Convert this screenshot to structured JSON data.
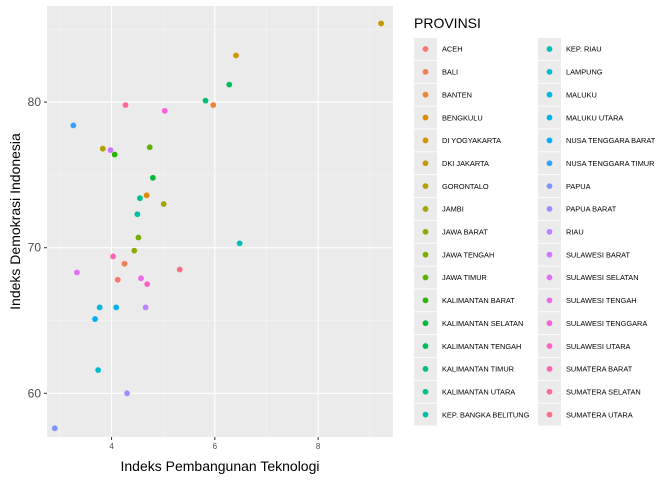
{
  "chart_data": {
    "type": "scatter",
    "xlabel": "Indeks Pembangunan Teknologi",
    "ylabel": "Indeks Demokrasi Indonesia",
    "xlim": [
      2.75,
      9.45
    ],
    "ylim": [
      57.0,
      86.6
    ],
    "x_ticks": [
      4,
      6,
      8
    ],
    "y_ticks": [
      60,
      70,
      80
    ],
    "grid": true,
    "legend": {
      "title": "PROVINSI",
      "placement": "right",
      "columns": 2
    },
    "series": [
      {
        "name": "ACEH",
        "color": "#F8766D",
        "x": 4.12,
        "y": 67.8
      },
      {
        "name": "BALI",
        "color": "#F27D52",
        "x": 4.25,
        "y": 68.9
      },
      {
        "name": "BANTEN",
        "color": "#E98535",
        "x": 5.97,
        "y": 79.8
      },
      {
        "name": "BENGKULU",
        "color": "#DE8C00",
        "x": 4.68,
        "y": 73.6
      },
      {
        "name": "DI YOGYAKARTA",
        "color": "#D49300",
        "x": 6.41,
        "y": 83.2
      },
      {
        "name": "DKI JAKARTA",
        "color": "#C49A00",
        "x": 9.22,
        "y": 85.4
      },
      {
        "name": "GORONTALO",
        "color": "#B49F00",
        "x": 3.83,
        "y": 76.8
      },
      {
        "name": "JAMBI",
        "color": "#A3A500",
        "x": 5.01,
        "y": 73.0
      },
      {
        "name": "JAWA BARAT",
        "color": "#8FAA00",
        "x": 4.44,
        "y": 69.8
      },
      {
        "name": "JAWA TENGAH",
        "color": "#7AAE00",
        "x": 4.52,
        "y": 70.7
      },
      {
        "name": "JAWA TIMUR",
        "color": "#5BB300",
        "x": 4.74,
        "y": 76.9
      },
      {
        "name": "KALIMANTAN BARAT",
        "color": "#2AB700",
        "x": 4.06,
        "y": 76.4
      },
      {
        "name": "KALIMANTAN SELATAN",
        "color": "#00BA38",
        "x": 4.8,
        "y": 74.8
      },
      {
        "name": "KALIMANTAN TENGAH",
        "color": "#00BC59",
        "x": 6.28,
        "y": 81.2
      },
      {
        "name": "KALIMANTAN TIMUR",
        "color": "#00BE74",
        "x": 5.82,
        "y": 80.1
      },
      {
        "name": "KALIMANTAN UTARA",
        "color": "#00BF8C",
        "x": 4.55,
        "y": 73.4
      },
      {
        "name": "KEP. BANGKA BELITUNG",
        "color": "#00C0A3",
        "x": 4.5,
        "y": 72.3
      },
      {
        "name": "KEP. RIAU",
        "color": "#00BFB9",
        "x": 6.48,
        "y": 70.3
      },
      {
        "name": "LAMPUNG",
        "color": "#00BDCD",
        "x": 3.74,
        "y": 61.6
      },
      {
        "name": "MALUKU",
        "color": "#00B9E0",
        "x": 3.77,
        "y": 65.9
      },
      {
        "name": "MALUKU UTARA",
        "color": "#00B4EF",
        "x": 4.09,
        "y": 65.9
      },
      {
        "name": "NUSA TENGGARA BARAT",
        "color": "#00ADFA",
        "x": 3.68,
        "y": 65.1
      },
      {
        "name": "NUSA TENGGARA TIMUR",
        "color": "#35A2FF",
        "x": 3.26,
        "y": 78.4
      },
      {
        "name": "PAPUA",
        "color": "#7C96FF",
        "x": 2.9,
        "y": 57.6
      },
      {
        "name": "PAPUA BARAT",
        "color": "#9F8CFF",
        "x": 4.3,
        "y": 60.0
      },
      {
        "name": "RIAU",
        "color": "#BA82FF",
        "x": 4.66,
        "y": 65.9
      },
      {
        "name": "SULAWESI BARAT",
        "color": "#D078FF",
        "x": 3.98,
        "y": 76.7
      },
      {
        "name": "SULAWESI SELATAN",
        "color": "#E26EF7",
        "x": 3.33,
        "y": 68.3
      },
      {
        "name": "SULAWESI TENGAH",
        "color": "#EF67EA",
        "x": 4.57,
        "y": 67.9
      },
      {
        "name": "SULAWESI TENGGARA",
        "color": "#F962DB",
        "x": 5.03,
        "y": 79.4
      },
      {
        "name": "SULAWESI UTARA",
        "color": "#FF61C9",
        "x": 4.69,
        "y": 67.5
      },
      {
        "name": "SUMATERA BARAT",
        "color": "#FF63B4",
        "x": 4.03,
        "y": 69.4
      },
      {
        "name": "SUMATERA SELATAN",
        "color": "#FF689E",
        "x": 4.27,
        "y": 79.8
      },
      {
        "name": "SUMATERA UTARA",
        "color": "#FD6F86",
        "x": 5.32,
        "y": 68.5
      }
    ]
  }
}
